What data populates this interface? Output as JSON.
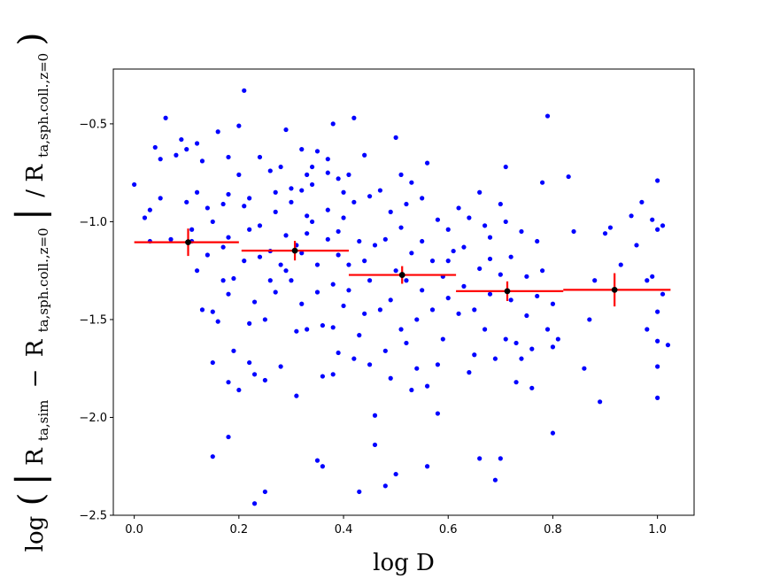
{
  "chart_data": {
    "type": "scatter",
    "xlabel": "log D",
    "ylabel": "log(|R_ta,sim − R_ta,sph.coll.,z=0| / R_ta,sph.coll.,z=0)",
    "ylabel_parts": {
      "log": "log",
      "r1": "R",
      "sub1": "ta,sim",
      "minus": "−",
      "r2": "R",
      "sub2": "ta,sph.coll.,z=0",
      "slash": "/",
      "r3": "R",
      "sub3": "ta,sph.coll.,z=0"
    },
    "xlim": [
      -0.04,
      1.07
    ],
    "ylim": [
      -2.5,
      -0.22
    ],
    "xticks": [
      0.0,
      0.2,
      0.4,
      0.6,
      0.8,
      1.0
    ],
    "xtick_labels": [
      "0.0",
      "0.2",
      "0.4",
      "0.6",
      "0.8",
      "1.0"
    ],
    "yticks": [
      -2.5,
      -2.0,
      -1.5,
      -1.0,
      -0.5
    ],
    "ytick_labels": [
      "−2.5",
      "−2.0",
      "−1.5",
      "−1.0",
      "−0.5"
    ],
    "colors": {
      "points": "#0000ff",
      "bins": "#ff0000",
      "means": "#000000"
    },
    "points": [
      [
        0.0,
        -0.81
      ],
      [
        0.02,
        -0.98
      ],
      [
        0.03,
        -1.1
      ],
      [
        0.03,
        -0.94
      ],
      [
        0.04,
        -0.62
      ],
      [
        0.05,
        -0.88
      ],
      [
        0.05,
        -0.68
      ],
      [
        0.06,
        -0.47
      ],
      [
        0.07,
        -1.09
      ],
      [
        0.08,
        -0.66
      ],
      [
        0.09,
        -0.58
      ],
      [
        0.1,
        -0.9
      ],
      [
        0.1,
        -0.63
      ],
      [
        0.11,
        -1.1
      ],
      [
        0.11,
        -1.04
      ],
      [
        0.12,
        -0.6
      ],
      [
        0.12,
        -0.85
      ],
      [
        0.12,
        -1.25
      ],
      [
        0.13,
        -1.45
      ],
      [
        0.13,
        -0.69
      ],
      [
        0.14,
        -0.93
      ],
      [
        0.14,
        -1.17
      ],
      [
        0.15,
        -1.46
      ],
      [
        0.15,
        -1.72
      ],
      [
        0.15,
        -1.0
      ],
      [
        0.15,
        -2.2
      ],
      [
        0.16,
        -1.51
      ],
      [
        0.16,
        -0.54
      ],
      [
        0.17,
        -1.3
      ],
      [
        0.17,
        -0.91
      ],
      [
        0.17,
        -1.13
      ],
      [
        0.18,
        -0.67
      ],
      [
        0.18,
        -0.86
      ],
      [
        0.18,
        -1.08
      ],
      [
        0.18,
        -1.37
      ],
      [
        0.18,
        -2.1
      ],
      [
        0.18,
        -1.82
      ],
      [
        0.19,
        -1.29
      ],
      [
        0.19,
        -1.66
      ],
      [
        0.2,
        -1.86
      ],
      [
        0.2,
        -0.76
      ],
      [
        0.2,
        -0.51
      ],
      [
        0.21,
        -0.33
      ],
      [
        0.21,
        -0.92
      ],
      [
        0.21,
        -1.2
      ],
      [
        0.22,
        -1.52
      ],
      [
        0.22,
        -1.72
      ],
      [
        0.22,
        -1.04
      ],
      [
        0.22,
        -0.88
      ],
      [
        0.23,
        -2.44
      ],
      [
        0.23,
        -1.78
      ],
      [
        0.23,
        -1.41
      ],
      [
        0.24,
        -0.67
      ],
      [
        0.24,
        -1.02
      ],
      [
        0.24,
        -1.18
      ],
      [
        0.25,
        -2.38
      ],
      [
        0.25,
        -1.81
      ],
      [
        0.25,
        -1.5
      ],
      [
        0.26,
        -1.3
      ],
      [
        0.26,
        -0.74
      ],
      [
        0.26,
        -1.15
      ],
      [
        0.27,
        -0.85
      ],
      [
        0.27,
        -0.95
      ],
      [
        0.27,
        -1.36
      ],
      [
        0.28,
        -1.22
      ],
      [
        0.28,
        -1.74
      ],
      [
        0.28,
        -0.72
      ],
      [
        0.29,
        -0.53
      ],
      [
        0.29,
        -1.07
      ],
      [
        0.29,
        -1.25
      ],
      [
        0.3,
        -0.83
      ],
      [
        0.3,
        -0.9
      ],
      [
        0.3,
        -1.3
      ],
      [
        0.31,
        -1.12
      ],
      [
        0.31,
        -1.56
      ],
      [
        0.31,
        -1.89
      ],
      [
        0.32,
        -0.63
      ],
      [
        0.32,
        -0.84
      ],
      [
        0.32,
        -1.16
      ],
      [
        0.32,
        -1.42
      ],
      [
        0.33,
        -0.76
      ],
      [
        0.33,
        -0.97
      ],
      [
        0.33,
        -1.06
      ],
      [
        0.33,
        -1.55
      ],
      [
        0.34,
        -0.81
      ],
      [
        0.34,
        -0.72
      ],
      [
        0.34,
        -1.0
      ],
      [
        0.35,
        -1.22
      ],
      [
        0.35,
        -1.36
      ],
      [
        0.35,
        -0.64
      ],
      [
        0.35,
        -2.22
      ],
      [
        0.36,
        -2.25
      ],
      [
        0.36,
        -1.53
      ],
      [
        0.36,
        -1.79
      ],
      [
        0.37,
        -0.94
      ],
      [
        0.37,
        -0.75
      ],
      [
        0.37,
        -1.09
      ],
      [
        0.37,
        -0.68
      ],
      [
        0.38,
        -0.5
      ],
      [
        0.38,
        -1.54
      ],
      [
        0.38,
        -1.78
      ],
      [
        0.38,
        -1.32
      ],
      [
        0.39,
        -1.05
      ],
      [
        0.39,
        -1.17
      ],
      [
        0.39,
        -0.78
      ],
      [
        0.39,
        -1.67
      ],
      [
        0.4,
        -0.85
      ],
      [
        0.4,
        -1.43
      ],
      [
        0.4,
        -0.98
      ],
      [
        0.41,
        -1.22
      ],
      [
        0.41,
        -0.76
      ],
      [
        0.41,
        -1.35
      ],
      [
        0.42,
        -0.47
      ],
      [
        0.42,
        -0.9
      ],
      [
        0.42,
        -1.7
      ],
      [
        0.43,
        -2.38
      ],
      [
        0.43,
        -1.58
      ],
      [
        0.43,
        -1.1
      ],
      [
        0.44,
        -0.66
      ],
      [
        0.44,
        -1.2
      ],
      [
        0.44,
        -1.47
      ],
      [
        0.45,
        -0.87
      ],
      [
        0.45,
        -1.73
      ],
      [
        0.45,
        -1.3
      ],
      [
        0.46,
        -1.99
      ],
      [
        0.46,
        -2.14
      ],
      [
        0.46,
        -1.12
      ],
      [
        0.47,
        -0.84
      ],
      [
        0.47,
        -1.45
      ],
      [
        0.48,
        -2.35
      ],
      [
        0.48,
        -1.66
      ],
      [
        0.48,
        -1.09
      ],
      [
        0.49,
        -0.95
      ],
      [
        0.49,
        -1.4
      ],
      [
        0.49,
        -1.8
      ],
      [
        0.5,
        -0.57
      ],
      [
        0.5,
        -1.25
      ],
      [
        0.5,
        -2.29
      ],
      [
        0.51,
        -0.76
      ],
      [
        0.51,
        -1.55
      ],
      [
        0.51,
        -1.03
      ],
      [
        0.52,
        -1.62
      ],
      [
        0.52,
        -1.3
      ],
      [
        0.52,
        -0.91
      ],
      [
        0.53,
        -1.86
      ],
      [
        0.53,
        -1.16
      ],
      [
        0.53,
        -0.8
      ],
      [
        0.54,
        -1.75
      ],
      [
        0.54,
        -1.5
      ],
      [
        0.55,
        -1.1
      ],
      [
        0.55,
        -0.88
      ],
      [
        0.55,
        -1.35
      ],
      [
        0.56,
        -1.84
      ],
      [
        0.56,
        -2.25
      ],
      [
        0.56,
        -0.7
      ],
      [
        0.57,
        -1.2
      ],
      [
        0.57,
        -1.45
      ],
      [
        0.58,
        -1.98
      ],
      [
        0.58,
        -0.99
      ],
      [
        0.58,
        -1.73
      ],
      [
        0.59,
        -1.28
      ],
      [
        0.59,
        -1.6
      ],
      [
        0.6,
        -1.04
      ],
      [
        0.6,
        -1.39
      ],
      [
        0.6,
        -1.2
      ],
      [
        0.61,
        -1.15
      ],
      [
        0.62,
        -0.93
      ],
      [
        0.62,
        -1.47
      ],
      [
        0.63,
        -1.13
      ],
      [
        0.63,
        -1.33
      ],
      [
        0.64,
        -1.77
      ],
      [
        0.64,
        -0.98
      ],
      [
        0.65,
        -1.45
      ],
      [
        0.65,
        -1.68
      ],
      [
        0.66,
        -1.24
      ],
      [
        0.66,
        -2.21
      ],
      [
        0.66,
        -0.85
      ],
      [
        0.67,
        -1.02
      ],
      [
        0.67,
        -1.55
      ],
      [
        0.68,
        -1.08
      ],
      [
        0.68,
        -1.37
      ],
      [
        0.68,
        -1.19
      ],
      [
        0.69,
        -2.32
      ],
      [
        0.69,
        -1.7
      ],
      [
        0.7,
        -0.91
      ],
      [
        0.7,
        -1.27
      ],
      [
        0.7,
        -2.21
      ],
      [
        0.71,
        -1.6
      ],
      [
        0.71,
        -1.0
      ],
      [
        0.71,
        -0.72
      ],
      [
        0.72,
        -1.4
      ],
      [
        0.72,
        -1.18
      ],
      [
        0.73,
        -1.82
      ],
      [
        0.73,
        -1.62
      ],
      [
        0.74,
        -1.05
      ],
      [
        0.74,
        -1.7
      ],
      [
        0.75,
        -1.28
      ],
      [
        0.75,
        -1.48
      ],
      [
        0.76,
        -1.85
      ],
      [
        0.76,
        -1.65
      ],
      [
        0.77,
        -1.1
      ],
      [
        0.77,
        -1.38
      ],
      [
        0.78,
        -0.8
      ],
      [
        0.78,
        -1.25
      ],
      [
        0.79,
        -1.55
      ],
      [
        0.79,
        -0.46
      ],
      [
        0.8,
        -1.42
      ],
      [
        0.8,
        -1.64
      ],
      [
        0.8,
        -2.08
      ],
      [
        0.81,
        -1.6
      ],
      [
        0.83,
        -0.77
      ],
      [
        0.84,
        -1.05
      ],
      [
        0.86,
        -1.75
      ],
      [
        0.87,
        -1.5
      ],
      [
        0.88,
        -1.3
      ],
      [
        0.89,
        -1.92
      ],
      [
        0.9,
        -1.06
      ],
      [
        0.91,
        -1.03
      ],
      [
        0.93,
        -1.22
      ],
      [
        0.95,
        -0.97
      ],
      [
        0.96,
        -1.12
      ],
      [
        0.97,
        -0.9
      ],
      [
        0.98,
        -1.55
      ],
      [
        0.98,
        -1.3
      ],
      [
        0.99,
        -0.99
      ],
      [
        0.99,
        -1.28
      ],
      [
        1.0,
        -0.79
      ],
      [
        1.0,
        -1.04
      ],
      [
        1.0,
        -1.46
      ],
      [
        1.0,
        -1.74
      ],
      [
        1.0,
        -1.9
      ],
      [
        1.0,
        -1.61
      ],
      [
        1.01,
        -1.02
      ],
      [
        1.01,
        -1.37
      ],
      [
        1.02,
        -1.63
      ]
    ],
    "bins": [
      {
        "x": 0.103,
        "y": -1.105,
        "xerr": [
          0.0,
          0.2
        ],
        "yerr": 0.07
      },
      {
        "x": 0.307,
        "y": -1.148,
        "xerr": [
          0.205,
          0.41
        ],
        "yerr": 0.05
      },
      {
        "x": 0.512,
        "y": -1.272,
        "xerr": [
          0.41,
          0.615
        ],
        "yerr": 0.045
      },
      {
        "x": 0.713,
        "y": -1.355,
        "xerr": [
          0.615,
          0.82
        ],
        "yerr": 0.05
      },
      {
        "x": 0.918,
        "y": -1.348,
        "xerr": [
          0.82,
          1.025
        ],
        "yerr": 0.085
      }
    ]
  }
}
